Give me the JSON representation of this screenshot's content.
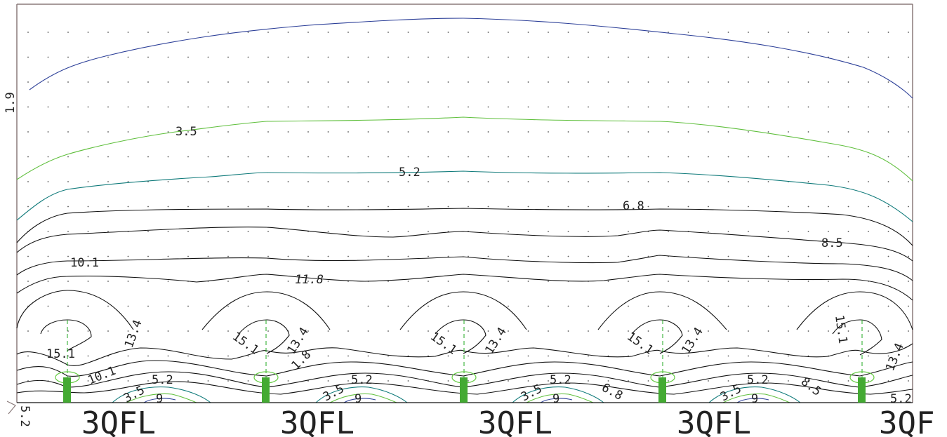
{
  "colors": {
    "frame": "#8a7a7a",
    "contour_default": "#111111",
    "contour_1_9": "#2c3f98",
    "contour_3_5": "#5fbf3c",
    "contour_5_2": "#0f7a7a",
    "luminaire": "#44aa33",
    "luminaire_ring": "#66cc44",
    "axis_dash": "#22aa22",
    "grid_dot": "#555555"
  },
  "contour_labels": {
    "v1_9": "1.9",
    "v3_5": "3.5",
    "v5_2": "5.2",
    "v6_8": "6.8",
    "v8_5": "8.5",
    "v10_1": "10.1",
    "v11_8": "11.8",
    "v13_4": "13.4",
    "v15_1": "15.1",
    "v9": "9",
    "v1_8": "1.8",
    "v5_2_edge": "5.2",
    "v5_2_left": "5.2"
  },
  "poles": [
    {
      "label": "3QFL"
    },
    {
      "label": "3QFL"
    },
    {
      "label": "3QFL"
    },
    {
      "label": "3QFL"
    },
    {
      "label": "3QF"
    }
  ]
}
